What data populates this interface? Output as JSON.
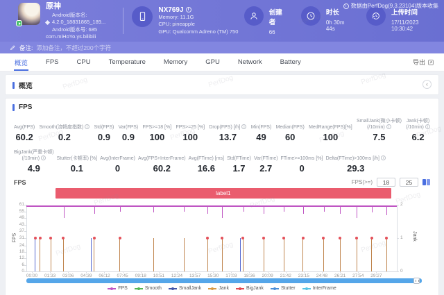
{
  "watermark": "PerfDog",
  "header": {
    "meta_note": "数据由PerfDog(9.3.23104)版本收集",
    "app": {
      "name": "原神",
      "version_name": "Android版本名: 4.2.0_18831865_189...",
      "version_code": "Android版本号: 685",
      "package": "com.miHoYo.ys.bilibili"
    },
    "device": {
      "name": "NX769J",
      "memory": "Memory: 11.1G",
      "cpu": "CPU: pineapple",
      "gpu": "GPU: Qualcomm Adreno (TM) 750"
    },
    "creator": {
      "label": "创建者",
      "value": "66"
    },
    "duration": {
      "label": "时长",
      "value": "0h 30m 44s"
    },
    "upload": {
      "label": "上传时间",
      "value": "17/11/2023 10:30:42"
    }
  },
  "note_bar": {
    "label": "备注:",
    "placeholder": "添加备注，不超过200个字符"
  },
  "tab_bar": {
    "tabs": [
      "概览",
      "FPS",
      "CPU",
      "Temperature",
      "Memory",
      "GPU",
      "Network",
      "Battery"
    ],
    "tab_names": [
      "overview",
      "fps",
      "cpu",
      "temperature",
      "memory",
      "gpu",
      "network",
      "battery"
    ],
    "active_tab": "概览",
    "export_label": "导出"
  },
  "sections": {
    "overview_title": "概览",
    "fps_title": "FPS"
  },
  "metrics": {
    "row1": [
      {
        "l1": "Avg(FPS)",
        "v": "60.2"
      },
      {
        "l1": "Smooth(流畅度指数)",
        "info": true,
        "v": "0.2"
      },
      {
        "l1": "Std(FPS)",
        "v": "0.9"
      },
      {
        "l1": "Var(FPS)",
        "v": "0.9"
      },
      {
        "l1": "FPS>=18 [%]",
        "v": "100"
      },
      {
        "l1": "FPS>=25 [%]",
        "v": "100"
      },
      {
        "l1": "Drop(FPS) [/h]",
        "info": true,
        "v": "13.7"
      },
      {
        "l1": "Min(FPS)",
        "v": "49"
      },
      {
        "l1": "Median(FPS)",
        "v": "60"
      },
      {
        "l1": "MedRange(FPS)[%]",
        "v": "100"
      },
      {
        "l1": "SmallJank(微小卡顿)",
        "l2": "(/10min)",
        "info": true,
        "v": "7.5"
      },
      {
        "l1": "Jank(卡顿)",
        "l2": "(/10min)",
        "info": true,
        "v": "6.2"
      }
    ],
    "row2": [
      {
        "l1": "BigJank(严重卡顿)",
        "l2": "(/10min)",
        "info": true,
        "v": "4.9"
      },
      {
        "l1": "Stutter(卡顿率) [%]",
        "v": "0.1"
      },
      {
        "l1": "Avg(InterFrame)",
        "v": "0"
      },
      {
        "l1": "Avg(FPS+InterFrame)",
        "v": "60.2"
      },
      {
        "l1": "Avg(FTime) [ms]",
        "v": "16.6"
      },
      {
        "l1": "Std(FTime)",
        "v": "1.7"
      },
      {
        "l1": "Var(FTime)",
        "v": "2.7"
      },
      {
        "l1": "FTime>=100ms [%]",
        "v": "0"
      },
      {
        "l1": "Delta(FTime)>100ms [/h]",
        "info": true,
        "v": "29.3"
      }
    ]
  },
  "fps_block": {
    "title": "FPS",
    "threshold_label": "FPS(>=)",
    "threshold_low": "18",
    "threshold_high": "25"
  },
  "chart_data": {
    "type": "line",
    "title": "FPS over time with jank event markers",
    "total_s": 1844,
    "x_unit": "mm:ss",
    "xticks": [
      "00:00",
      "01:33",
      "03:06",
      "04:39",
      "06:12",
      "07:45",
      "09:18",
      "10:51",
      "12:24",
      "13:57",
      "15:30",
      "17:03",
      "18:36",
      "20:09",
      "21:42",
      "23:15",
      "24:48",
      "26:21",
      "27:54",
      "29:27"
    ],
    "xtick_step_s": 93,
    "left_axis": {
      "label": "FPS",
      "ticks": [
        61,
        55,
        49,
        43,
        37,
        31,
        24,
        18,
        12,
        6,
        0
      ],
      "max": 61
    },
    "right_axis": {
      "label": "Jank",
      "ticks": [
        2,
        1,
        0
      ],
      "max": 2
    },
    "annotation_band": {
      "label": "label1",
      "start": "02:00",
      "end": "30:44",
      "color": "#ea5c6e"
    },
    "fps_line": {
      "color": "#bf55c3",
      "steady_value": 60,
      "dips": [
        {
          "t": "02:45",
          "fps": 49
        },
        {
          "t": "05:20",
          "fps": 53
        },
        {
          "t": "07:32",
          "fps": 55
        },
        {
          "t": "10:24",
          "fps": 54
        },
        {
          "t": "12:59",
          "fps": 55
        },
        {
          "t": "15:02",
          "fps": 53
        },
        {
          "t": "16:17",
          "fps": 49
        },
        {
          "t": "18:04",
          "fps": 55
        },
        {
          "t": "19:50",
          "fps": 53
        },
        {
          "t": "21:34",
          "fps": 55
        },
        {
          "t": "23:12",
          "fps": 53
        },
        {
          "t": "24:57",
          "fps": 55
        },
        {
          "t": "26:22",
          "fps": 53
        },
        {
          "t": "27:47",
          "fps": 49
        },
        {
          "t": "29:04",
          "fps": 54
        },
        {
          "t": "30:19",
          "fps": 52
        }
      ]
    },
    "jank_events": [
      {
        "t": "00:15",
        "kind": "stutter",
        "dot": true
      },
      {
        "t": "00:40",
        "kind": "jank",
        "dot": true
      },
      {
        "t": "01:35",
        "kind": "jank",
        "dot": true
      },
      {
        "t": "02:40",
        "kind": "jank",
        "dot": true
      },
      {
        "t": "05:03",
        "kind": "stutter",
        "dot": false
      },
      {
        "t": "05:18",
        "kind": "jank",
        "dot": true
      },
      {
        "t": "07:30",
        "kind": "jank",
        "dot": true
      },
      {
        "t": "10:22",
        "kind": "jank",
        "dot": false
      },
      {
        "t": "12:58",
        "kind": "jank",
        "dot": false
      },
      {
        "t": "15:00",
        "kind": "jank",
        "dot": true
      },
      {
        "t": "16:15",
        "kind": "jank",
        "dot": true
      },
      {
        "t": "17:48",
        "kind": "stutter",
        "dot": false
      },
      {
        "t": "18:02",
        "kind": "jank",
        "dot": true
      },
      {
        "t": "19:48",
        "kind": "jank",
        "dot": true
      },
      {
        "t": "21:32",
        "kind": "jank",
        "dot": true
      },
      {
        "t": "23:10",
        "kind": "jank",
        "dot": true
      },
      {
        "t": "24:55",
        "kind": "jank",
        "dot": true
      },
      {
        "t": "26:20",
        "kind": "jank",
        "dot": true
      },
      {
        "t": "27:45",
        "kind": "jank",
        "dot": true
      },
      {
        "t": "29:02",
        "kind": "jank",
        "dot": true
      },
      {
        "t": "30:18",
        "kind": "jank",
        "dot": true
      }
    ],
    "jank_dot_color": "#e4505a",
    "event_colors": {
      "jank": "#c0854e",
      "stutter": "#5668cf"
    },
    "brush_color": "#55a6e9",
    "legend": [
      {
        "name": "FPS",
        "color": "#bf55c3"
      },
      {
        "name": "Smooth",
        "color": "#53b552"
      },
      {
        "name": "SmallJank",
        "color": "#4054a8"
      },
      {
        "name": "Jank",
        "color": "#d99a45"
      },
      {
        "name": "BigJank",
        "color": "#e0484f"
      },
      {
        "name": "Stutter",
        "color": "#4a8ed8"
      },
      {
        "name": "InterFrame",
        "color": "#57c4e4"
      }
    ]
  }
}
